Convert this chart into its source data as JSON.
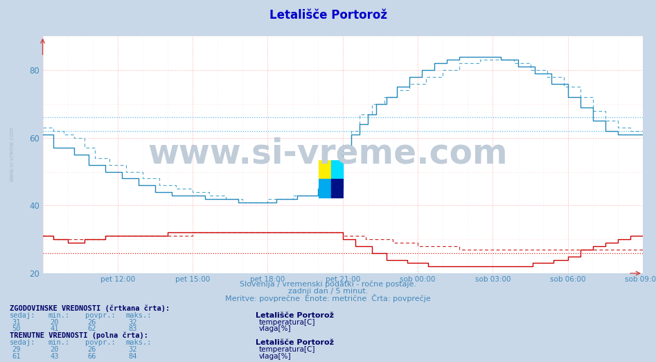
{
  "title": "Letališče Portorož",
  "title_color": "#0000cc",
  "bg_color": "#c8d8e8",
  "plot_bg_color": "#ffffff",
  "xmin": 0,
  "xmax": 288,
  "ymin": 20,
  "ymax": 90,
  "yticks": [
    20,
    40,
    60,
    80
  ],
  "xlabel_color": "#4488bb",
  "ylabel_color": "#4488bb",
  "x_tick_labels": [
    "pet 12:00",
    "pet 15:00",
    "pet 18:00",
    "pet 21:00",
    "sob 00:00",
    "sob 03:00",
    "sob 06:00",
    "sob 09:00"
  ],
  "x_tick_positions": [
    36,
    72,
    108,
    144,
    180,
    216,
    252,
    288
  ],
  "temp_color": "#cc0000",
  "hum_color": "#3399cc",
  "hum_mean_curr": 66,
  "hum_mean_hist": 62,
  "temp_mean_curr": 26,
  "temp_mean_hist": 26,
  "subtitle1": "Slovenija / vremenski podatki - ročne postaje.",
  "subtitle2": "zadnji dan / 5 minut.",
  "subtitle3": "Meritve: povprečne  Enote: metrične  Črta: povprečje",
  "footer_color": "#4488bb",
  "footer_bold_color": "#000066",
  "watermark": "www.si-vreme.com",
  "watermark_color": "#c0ccd8",
  "sidebar_text": "www.si-vreme.com",
  "sidebar_color": "#aabbcc",
  "hist_label_title": "ZGODOVINSKE VREDNOSTI (črtkana črta):",
  "curr_label_title": "TRENUTNE VREDNOSTI (polna črta):",
  "col_headers": [
    "sedaj:",
    "min.:",
    "povpr.:",
    "maks.:"
  ],
  "hist_temp_row": [
    31,
    20,
    26,
    32
  ],
  "hist_hum_row": [
    50,
    41,
    62,
    83
  ],
  "curr_temp_row": [
    29,
    20,
    26,
    32
  ],
  "curr_hum_row": [
    61,
    43,
    66,
    84
  ],
  "station_name": "Letališče Portorož",
  "temp_label": "temperatura[C]",
  "hum_label": "vlaga[%]"
}
